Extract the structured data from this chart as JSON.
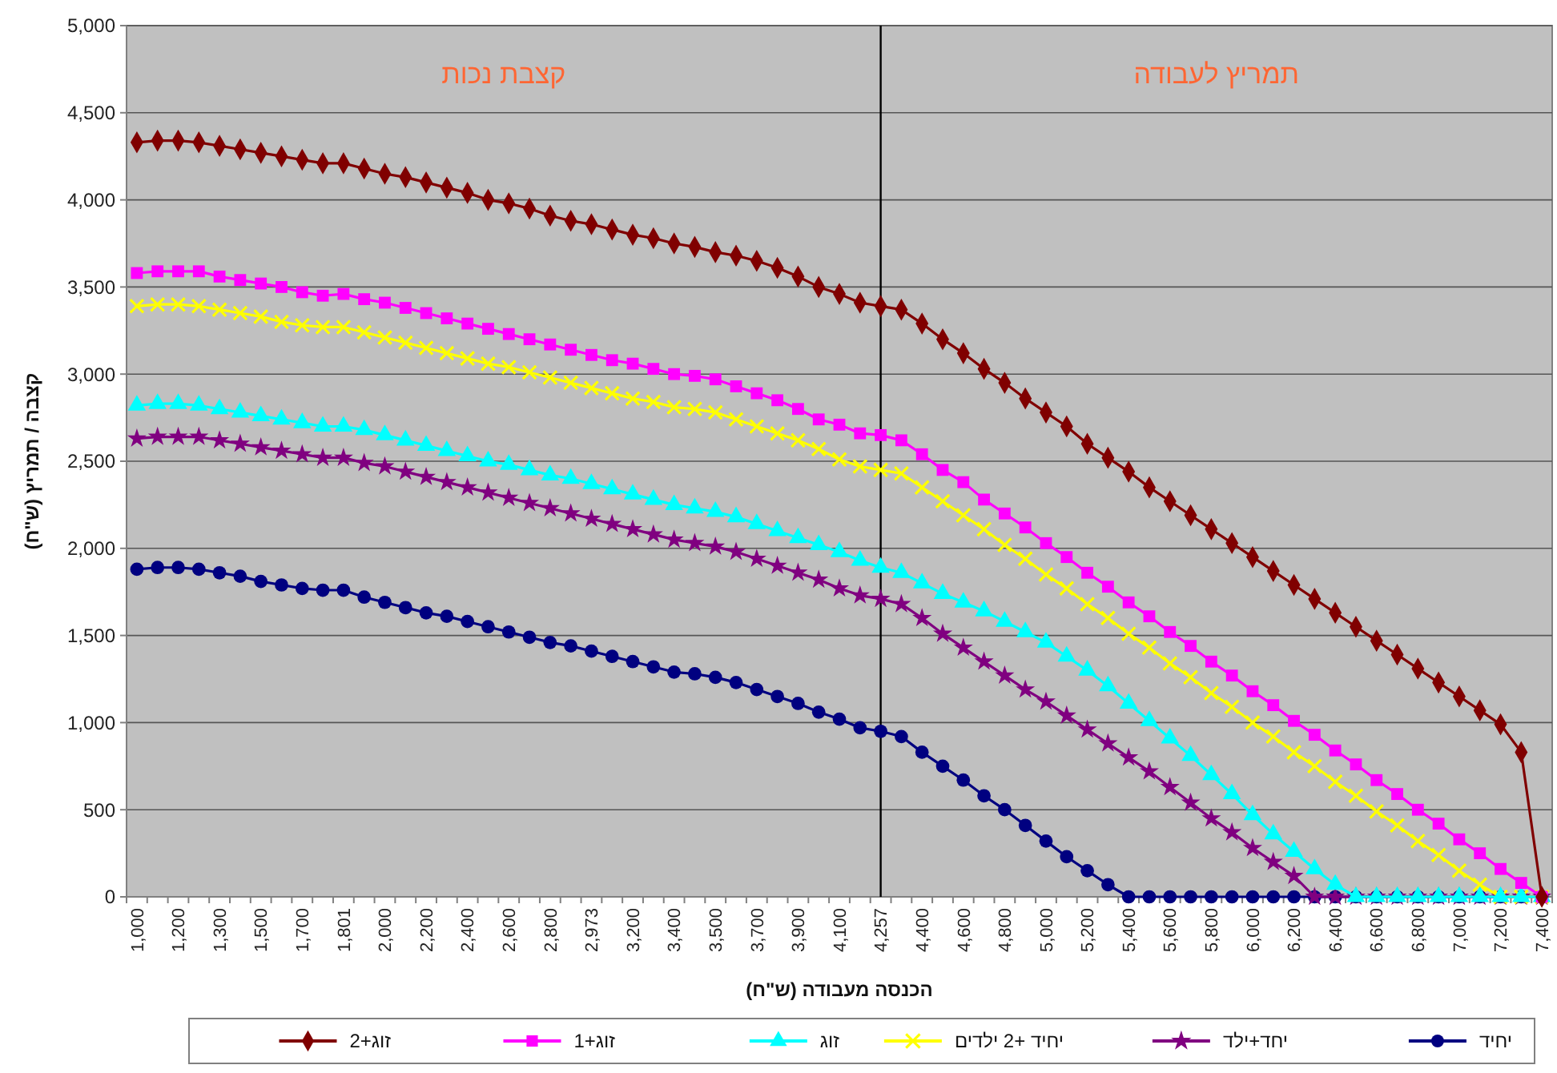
{
  "chart_data": {
    "type": "line",
    "xlabel": "הכנסה מעבודה (ש\"ח)",
    "ylabel": "קצבה / תמריץ (ש\"ח)",
    "categories": [
      "1,000",
      null,
      "1,200",
      null,
      "1,300",
      null,
      "1,500",
      null,
      "1,700",
      null,
      "1,801",
      null,
      "2,000",
      null,
      "2,200",
      null,
      "2,400",
      null,
      "2,600",
      null,
      "2,800",
      null,
      "2,973",
      null,
      "3,200",
      null,
      "3,400",
      null,
      "3,500",
      null,
      "3,700",
      null,
      "3,900",
      null,
      "4,100",
      null,
      "4,257",
      null,
      "4,400",
      null,
      "4,600",
      null,
      "4,800",
      null,
      "5,000",
      null,
      "5,200",
      null,
      "5,400",
      null,
      "5,600",
      null,
      "5,800",
      null,
      "6,000",
      null,
      "6,200",
      null,
      "6,400",
      null,
      "6,600",
      null,
      "6,800",
      null,
      "7,000",
      null,
      "7,200",
      null,
      "7,400"
    ],
    "series": [
      {
        "name": "יחיד",
        "color": "#000080",
        "marker": "circle",
        "values": [
          1880,
          1890,
          1890,
          1880,
          1860,
          1840,
          1810,
          1790,
          1770,
          1760,
          1760,
          1720,
          1690,
          1660,
          1630,
          1610,
          1580,
          1550,
          1520,
          1490,
          1460,
          1440,
          1410,
          1380,
          1350,
          1320,
          1290,
          1280,
          1260,
          1230,
          1190,
          1150,
          1110,
          1060,
          1020,
          970,
          950,
          920,
          830,
          750,
          670,
          580,
          500,
          410,
          320,
          230,
          150,
          70,
          0,
          0,
          0,
          0,
          0,
          0,
          0,
          0,
          0,
          0,
          0,
          0,
          0,
          0,
          0,
          0,
          0,
          0,
          0,
          0,
          0
        ]
      },
      {
        "name": "יחד+ילד",
        "color": "#800080",
        "marker": "star",
        "values": [
          2630,
          2640,
          2640,
          2640,
          2620,
          2600,
          2580,
          2560,
          2540,
          2520,
          2520,
          2490,
          2470,
          2440,
          2410,
          2380,
          2350,
          2320,
          2290,
          2260,
          2230,
          2200,
          2170,
          2140,
          2110,
          2080,
          2050,
          2030,
          2010,
          1980,
          1940,
          1900,
          1860,
          1820,
          1770,
          1730,
          1710,
          1680,
          1600,
          1510,
          1430,
          1350,
          1270,
          1190,
          1120,
          1040,
          960,
          880,
          800,
          720,
          630,
          540,
          450,
          370,
          280,
          200,
          120,
          0,
          0,
          0,
          0,
          0,
          0,
          0,
          0,
          0,
          0,
          0,
          0
        ]
      },
      {
        "name": "יחיד +2 ילדים",
        "color": "#ffff00",
        "marker": "cross",
        "values": [
          3390,
          3400,
          3400,
          3390,
          3370,
          3350,
          3330,
          3300,
          3280,
          3270,
          3270,
          3240,
          3210,
          3180,
          3150,
          3120,
          3090,
          3060,
          3040,
          3010,
          2980,
          2950,
          2920,
          2890,
          2860,
          2840,
          2810,
          2800,
          2780,
          2740,
          2700,
          2660,
          2620,
          2570,
          2510,
          2470,
          2450,
          2430,
          2350,
          2270,
          2190,
          2110,
          2020,
          1940,
          1850,
          1770,
          1680,
          1600,
          1510,
          1430,
          1340,
          1260,
          1170,
          1090,
          1000,
          920,
          830,
          750,
          660,
          580,
          490,
          410,
          320,
          240,
          150,
          70,
          0,
          0,
          0
        ]
      },
      {
        "name": "זוג",
        "color": "#00ffff",
        "marker": "triangle",
        "values": [
          2820,
          2830,
          2830,
          2820,
          2800,
          2780,
          2760,
          2740,
          2720,
          2700,
          2700,
          2680,
          2650,
          2620,
          2590,
          2560,
          2530,
          2500,
          2480,
          2450,
          2420,
          2400,
          2370,
          2340,
          2310,
          2280,
          2250,
          2230,
          2210,
          2180,
          2140,
          2100,
          2060,
          2020,
          1980,
          1930,
          1890,
          1860,
          1800,
          1740,
          1690,
          1640,
          1580,
          1520,
          1460,
          1380,
          1300,
          1210,
          1110,
          1010,
          910,
          810,
          700,
          590,
          470,
          360,
          260,
          160,
          70,
          0,
          0,
          0,
          0,
          0,
          0,
          0,
          0,
          0,
          0
        ]
      },
      {
        "name": "זוג+1",
        "color": "#ff00ff",
        "marker": "square",
        "values": [
          3580,
          3590,
          3590,
          3590,
          3560,
          3540,
          3520,
          3500,
          3470,
          3450,
          3460,
          3430,
          3410,
          3380,
          3350,
          3320,
          3290,
          3260,
          3230,
          3200,
          3170,
          3140,
          3110,
          3080,
          3060,
          3030,
          3000,
          2990,
          2970,
          2930,
          2890,
          2850,
          2800,
          2740,
          2710,
          2660,
          2650,
          2620,
          2540,
          2450,
          2380,
          2280,
          2200,
          2120,
          2030,
          1950,
          1860,
          1780,
          1690,
          1610,
          1520,
          1440,
          1350,
          1270,
          1180,
          1100,
          1010,
          930,
          840,
          760,
          670,
          590,
          500,
          420,
          330,
          250,
          160,
          80,
          0
        ]
      },
      {
        "name": "זוג+2",
        "color": "#800000",
        "marker": "diamond",
        "values": [
          4330,
          4340,
          4340,
          4330,
          4310,
          4290,
          4270,
          4250,
          4230,
          4210,
          4210,
          4180,
          4150,
          4130,
          4100,
          4070,
          4040,
          4000,
          3980,
          3950,
          3910,
          3880,
          3860,
          3830,
          3800,
          3780,
          3750,
          3730,
          3700,
          3680,
          3650,
          3610,
          3560,
          3500,
          3460,
          3410,
          3390,
          3370,
          3290,
          3200,
          3120,
          3030,
          2950,
          2860,
          2780,
          2700,
          2600,
          2520,
          2440,
          2350,
          2270,
          2190,
          2110,
          2030,
          1950,
          1870,
          1790,
          1710,
          1630,
          1550,
          1470,
          1390,
          1310,
          1230,
          1150,
          1070,
          990,
          830,
          0
        ]
      }
    ],
    "ylim": [
      0,
      5000
    ],
    "yticks": [
      0,
      {
        "value": 500,
        "label": "500"
      },
      {
        "value": 1000,
        "label": "1,000"
      },
      {
        "value": 1500,
        "label": "1,500"
      },
      {
        "value": 2000,
        "label": "2,000"
      },
      {
        "value": 2500,
        "label": "2,500"
      },
      {
        "value": 3000,
        "label": "3,000"
      },
      {
        "value": 3500,
        "label": "3,500"
      },
      {
        "value": 4000,
        "label": "4,000"
      },
      {
        "value": 4500,
        "label": "4,500"
      },
      {
        "value": 5000,
        "label": "5,000"
      }
    ],
    "grid": "y",
    "legend": "bottom",
    "ref_lines": [
      {
        "axis": "x",
        "value": "4,257",
        "color": "#000000"
      }
    ],
    "annotations": [
      "קצבת נכות",
      "תמריץ לעבודה"
    ]
  }
}
